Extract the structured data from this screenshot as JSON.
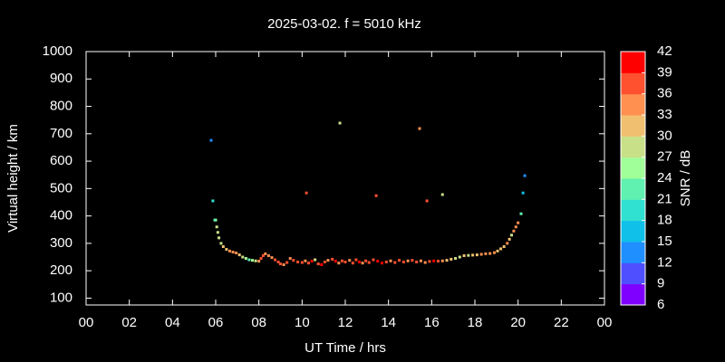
{
  "chart_data": {
    "type": "scatter",
    "title": "2025-03-02. f = 5010 kHz",
    "x_label": "UT Time / hrs",
    "y_label": "Virtual height / km",
    "xlim": [
      0,
      24
    ],
    "ylim": [
      75,
      1000
    ],
    "xticks": [
      {
        "value": 0,
        "label": "00"
      },
      {
        "value": 2,
        "label": "02"
      },
      {
        "value": 4,
        "label": "04"
      },
      {
        "value": 6,
        "label": "06"
      },
      {
        "value": 8,
        "label": "08"
      },
      10,
      12,
      14,
      16,
      18,
      20,
      22,
      {
        "value": 24,
        "label": "00"
      }
    ],
    "yticks": [
      100,
      200,
      300,
      400,
      500,
      600,
      700,
      800,
      900,
      1000
    ],
    "colorbar": {
      "label": "SNR / dB",
      "lim": [
        6,
        42
      ],
      "ticks": [
        6,
        9,
        12,
        15,
        18,
        21,
        24,
        27,
        30,
        33,
        36,
        39,
        42
      ],
      "colors": [
        "#8000ff",
        "#4f4fff",
        "#1f8fff",
        "#10c0e8",
        "#30e0d0",
        "#60f0b0",
        "#a0ff98",
        "#c8e088",
        "#f0c070",
        "#ff9050",
        "#ff5030",
        "#ff0000"
      ]
    },
    "series": [
      {
        "x": [
          6.0,
          6.05,
          6.1,
          6.15,
          6.25,
          6.35,
          6.5,
          6.65,
          6.8,
          6.95,
          7.1,
          7.25,
          7.4,
          7.55,
          7.7,
          7.85,
          8.0,
          8.1,
          8.2,
          8.3,
          8.45,
          8.6,
          8.75,
          8.9,
          9.0,
          9.15,
          9.3,
          9.45,
          9.6,
          9.8,
          10.0,
          10.15,
          10.3,
          10.45,
          10.6,
          10.75,
          10.9,
          11.05,
          11.2,
          11.4,
          11.55,
          11.7,
          11.85,
          12.0,
          12.2,
          12.35,
          12.5,
          12.65,
          12.8,
          12.95,
          13.1,
          13.3,
          13.5,
          13.7,
          13.9,
          14.1,
          14.3,
          14.5,
          14.7,
          14.9,
          15.1,
          15.3,
          15.5,
          15.7,
          15.9,
          16.1,
          16.3,
          16.5,
          16.7,
          16.9,
          17.1,
          17.3,
          17.5,
          17.7,
          17.9,
          18.1,
          18.3,
          18.5,
          18.7,
          18.9,
          19.05,
          19.2,
          19.35,
          19.5,
          19.6,
          19.7,
          19.8,
          19.9,
          20.0,
          5.79,
          5.87,
          5.96,
          11.75,
          15.44,
          10.2,
          13.43,
          15.78,
          16.5,
          20.31,
          20.23,
          20.14
        ],
        "values": [
          385,
          360,
          340,
          320,
          300,
          288,
          278,
          272,
          268,
          265,
          258,
          250,
          245,
          240,
          238,
          236,
          235,
          245,
          255,
          262,
          255,
          248,
          240,
          232,
          225,
          222,
          230,
          245,
          238,
          232,
          230,
          236,
          228,
          235,
          240,
          225,
          222,
          232,
          238,
          242,
          235,
          228,
          236,
          232,
          238,
          228,
          240,
          232,
          228,
          236,
          230,
          240,
          235,
          228,
          232,
          236,
          230,
          238,
          232,
          236,
          238,
          232,
          236,
          230,
          234,
          236,
          235,
          236,
          238,
          242,
          245,
          250,
          255,
          256,
          257,
          258,
          260,
          262,
          263,
          266,
          272,
          280,
          288,
          300,
          315,
          330,
          345,
          360,
          375,
          676,
          455,
          385,
          739,
          719,
          484,
          474,
          455,
          478,
          547,
          484,
          408
        ],
        "snr": [
          25,
          28,
          28,
          28,
          28,
          30,
          30,
          33,
          33,
          33,
          30,
          27,
          24,
          22,
          24,
          27,
          33,
          36,
          36,
          33,
          33,
          33,
          36,
          36,
          36,
          33,
          36,
          33,
          36,
          36,
          36,
          33,
          36,
          39,
          27,
          36,
          39,
          36,
          33,
          36,
          39,
          33,
          36,
          36,
          33,
          36,
          36,
          39,
          33,
          36,
          36,
          36,
          39,
          39,
          36,
          33,
          36,
          36,
          36,
          33,
          36,
          36,
          33,
          33,
          36,
          39,
          36,
          33,
          30,
          30,
          27,
          27,
          30,
          27,
          30,
          30,
          33,
          33,
          33,
          33,
          30,
          30,
          30,
          33,
          30,
          28,
          33,
          33,
          33,
          12,
          18,
          21,
          27,
          33,
          36,
          36,
          36,
          27,
          12,
          15,
          21
        ]
      }
    ]
  }
}
